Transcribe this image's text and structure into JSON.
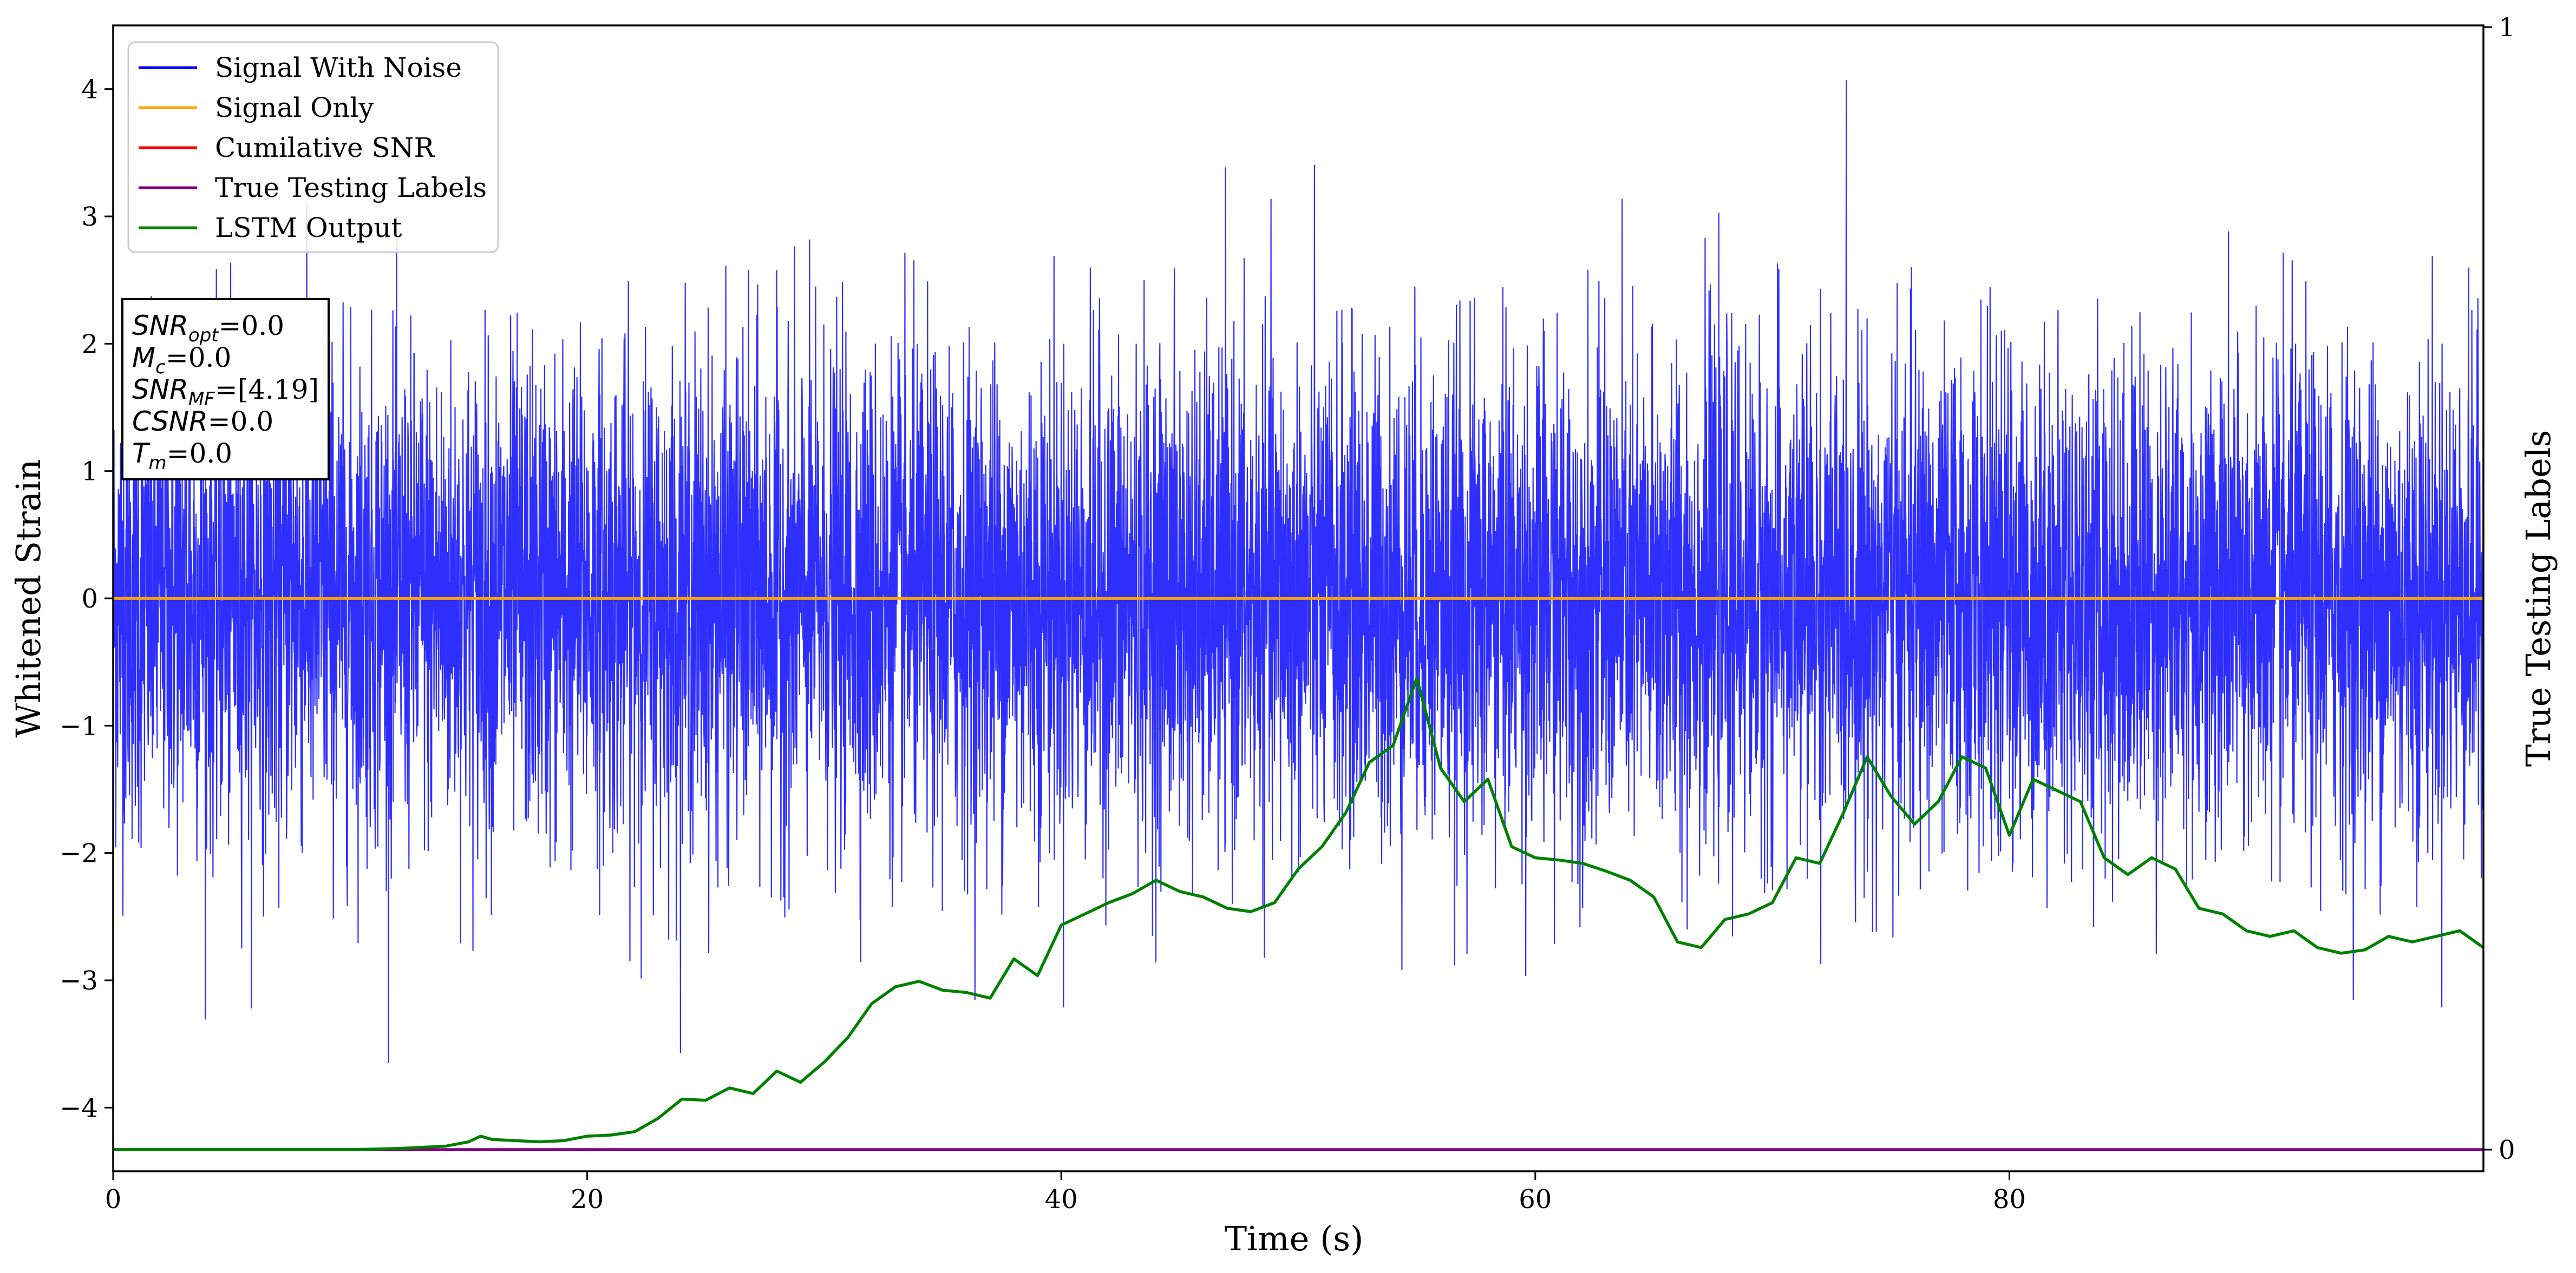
{
  "chart_data": {
    "type": "line",
    "xlabel": "Time (s)",
    "ylabel": "Whitened Strain",
    "y2label": "True Testing Labels",
    "xlim": [
      0,
      100
    ],
    "ylim": [
      -4.5,
      4.5
    ],
    "y2lim": [
      0,
      1
    ],
    "xticks": [
      "0",
      "20",
      "40",
      "60",
      "80"
    ],
    "yticks": [
      "4",
      "3",
      "2",
      "1",
      "0",
      "−1",
      "−2",
      "−3",
      "−4"
    ],
    "y2ticks": [
      "1",
      "0"
    ],
    "legend_position": "top-left",
    "grid": false,
    "series": [
      {
        "name": "Signal With Noise",
        "color": "#0000ff",
        "style": "dense noise band",
        "typical_range": [
          -1.5,
          1.5
        ],
        "peak_max": 4.12,
        "peak_min": -3.65
      },
      {
        "name": "Signal Only",
        "color": "#ffa500",
        "x": [
          0,
          100
        ],
        "y": [
          0,
          0
        ]
      },
      {
        "name": "Cumilative SNR",
        "color": "#ff0000",
        "x": [],
        "y": []
      },
      {
        "name": "True Testing Labels",
        "color": "#800080",
        "axis": "right",
        "x": [
          0,
          100
        ],
        "y": [
          0,
          0
        ]
      },
      {
        "name": "LSTM Output",
        "color": "#008000",
        "axis": "right",
        "x": [
          0,
          10,
          12,
          13,
          14,
          15,
          15.5,
          16,
          17,
          18,
          19,
          20,
          21,
          22,
          23,
          24,
          25,
          26,
          27,
          28,
          29,
          30,
          31,
          32,
          33,
          34,
          35,
          36,
          37,
          38,
          39,
          40,
          41,
          42,
          43,
          44,
          45,
          46,
          47,
          48,
          49,
          50,
          51,
          52,
          53,
          54,
          55,
          56,
          57,
          58,
          59,
          60,
          61,
          62,
          63,
          64,
          65,
          66,
          67,
          68,
          69,
          70,
          71,
          72,
          73,
          74,
          75,
          76,
          77,
          78,
          79,
          80,
          81,
          82,
          83,
          84,
          85,
          86,
          87,
          88,
          89,
          90,
          91,
          92,
          93,
          94,
          95,
          96,
          97,
          98,
          99,
          100
        ],
        "y": [
          0,
          0,
          0.001,
          0.002,
          0.003,
          0.007,
          0.012,
          0.009,
          0.008,
          0.007,
          0.008,
          0.012,
          0.013,
          0.016,
          0.028,
          0.045,
          0.044,
          0.055,
          0.05,
          0.07,
          0.06,
          0.078,
          0.1,
          0.13,
          0.145,
          0.15,
          0.142,
          0.14,
          0.135,
          0.17,
          0.155,
          0.2,
          0.21,
          0.22,
          0.228,
          0.24,
          0.23,
          0.225,
          0.215,
          0.212,
          0.22,
          0.25,
          0.27,
          0.3,
          0.345,
          0.36,
          0.42,
          0.34,
          0.31,
          0.33,
          0.27,
          0.26,
          0.258,
          0.255,
          0.248,
          0.24,
          0.225,
          0.185,
          0.18,
          0.205,
          0.21,
          0.22,
          0.26,
          0.255,
          0.3,
          0.35,
          0.315,
          0.29,
          0.31,
          0.35,
          0.34,
          0.28,
          0.33,
          0.32,
          0.31,
          0.26,
          0.245,
          0.26,
          0.25,
          0.215,
          0.21,
          0.195,
          0.19,
          0.195,
          0.18,
          0.175,
          0.178,
          0.19,
          0.185,
          0.19,
          0.195,
          0.18
        ]
      }
    ],
    "info_box": [
      {
        "sym": "SNR",
        "sub": "opt",
        "val": "=0.0"
      },
      {
        "sym": "M",
        "sub": "c",
        "val": "=0.0"
      },
      {
        "sym": "SNR",
        "sub": "MF",
        "val": "=[4.19]"
      },
      {
        "sym": "CSNR",
        "sub": "",
        "val": "=0.0"
      },
      {
        "sym": "T",
        "sub": "m",
        "val": "=0.0"
      }
    ]
  }
}
